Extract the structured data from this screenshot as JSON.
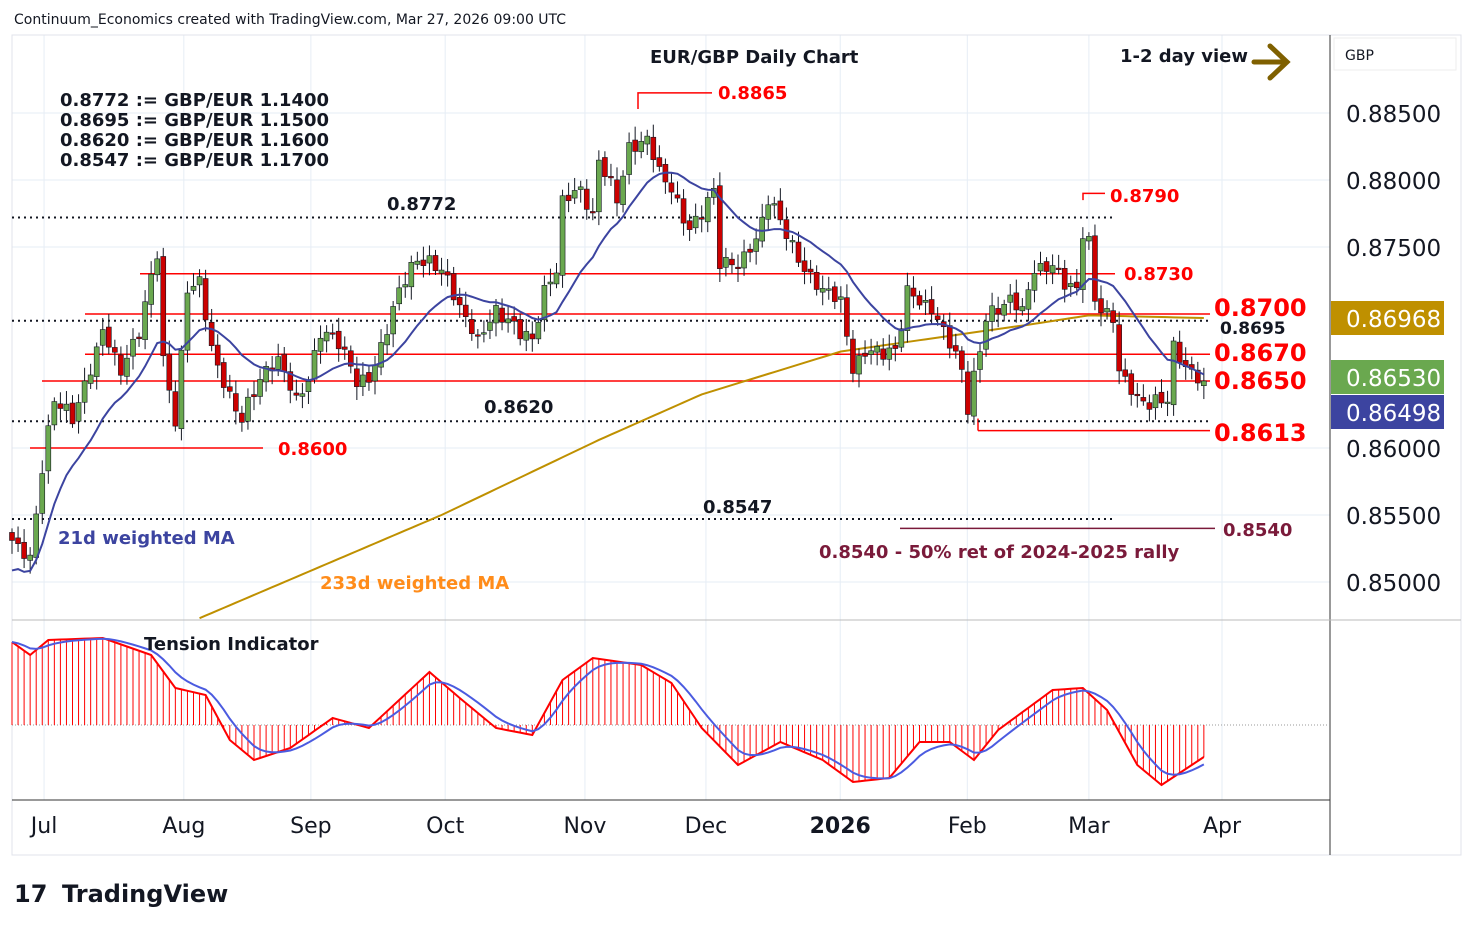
{
  "header": {
    "attribution": "Continuum_Economics created with TradingView.com, Mar 27, 2026 09:00 UTC"
  },
  "chart_data": {
    "type": "candlestick",
    "title": "EUR/GBP Daily Chart",
    "view": "1-2 day view",
    "currency": "GBP",
    "conversions": [
      "0.8772 := GBP/EUR 1.1400",
      "0.8695 := GBP/EUR 1.1500",
      "0.8620 := GBP/EUR 1.1600",
      "0.8547 := GBP/EUR 1.1700"
    ],
    "y_ticks": [
      "0.88500",
      "0.88000",
      "0.87500",
      "0.86000",
      "0.85500",
      "0.85000"
    ],
    "y_tick_values": [
      0.885,
      0.88,
      0.875,
      0.86,
      0.855,
      0.85
    ],
    "ylim": [
      0.8475,
      0.8875
    ],
    "x_ticks": [
      {
        "label": "Jul",
        "day": 5.3
      },
      {
        "label": "Aug",
        "day": 28.4
      },
      {
        "label": "Sep",
        "day": 49.4
      },
      {
        "label": "Oct",
        "day": 71.6
      },
      {
        "label": "Nov",
        "day": 94.7
      },
      {
        "label": "Dec",
        "day": 114.7
      },
      {
        "label": "2026",
        "day": 136.9
      },
      {
        "label": "Feb",
        "day": 157.9
      },
      {
        "label": "Mar",
        "day": 178
      },
      {
        "label": "Apr",
        "day": 200
      }
    ],
    "closes": [
      [
        0,
        0.8531
      ],
      [
        3,
        0.8516
      ],
      [
        5,
        0.8584
      ],
      [
        7,
        0.8636
      ],
      [
        10,
        0.8621
      ],
      [
        13,
        0.8658
      ],
      [
        15,
        0.8688
      ],
      [
        18,
        0.8658
      ],
      [
        21,
        0.8688
      ],
      [
        24,
        0.8748
      ],
      [
        25,
        0.8666
      ],
      [
        27,
        0.8621
      ],
      [
        29,
        0.8718
      ],
      [
        31,
        0.8725
      ],
      [
        33,
        0.8673
      ],
      [
        36,
        0.8636
      ],
      [
        38,
        0.8621
      ],
      [
        41,
        0.8651
      ],
      [
        44,
        0.8666
      ],
      [
        47,
        0.8636
      ],
      [
        49,
        0.8651
      ],
      [
        51,
        0.8688
      ],
      [
        54,
        0.8681
      ],
      [
        57,
        0.8651
      ],
      [
        59,
        0.8651
      ],
      [
        62,
        0.8688
      ],
      [
        64,
        0.8718
      ],
      [
        67,
        0.874
      ],
      [
        71,
        0.8733
      ],
      [
        73,
        0.8714
      ],
      [
        75,
        0.8696
      ],
      [
        77,
        0.8681
      ],
      [
        80,
        0.8703
      ],
      [
        82,
        0.8696
      ],
      [
        86,
        0.8681
      ],
      [
        88,
        0.8718
      ],
      [
        90,
        0.8733
      ],
      [
        91,
        0.8785
      ],
      [
        94,
        0.8793
      ],
      [
        96,
        0.877
      ],
      [
        97,
        0.8815
      ],
      [
        100,
        0.8785
      ],
      [
        102,
        0.8822
      ],
      [
        105,
        0.883
      ],
      [
        107,
        0.8807
      ],
      [
        109,
        0.8793
      ],
      [
        112,
        0.8763
      ],
      [
        115,
        0.8785
      ],
      [
        116,
        0.8793
      ],
      [
        117,
        0.874
      ],
      [
        120,
        0.8737
      ],
      [
        123,
        0.8755
      ],
      [
        125,
        0.8785
      ],
      [
        127,
        0.877
      ],
      [
        129,
        0.8748
      ],
      [
        132,
        0.8725
      ],
      [
        134,
        0.8718
      ],
      [
        137,
        0.871
      ],
      [
        139,
        0.8658
      ],
      [
        141,
        0.8673
      ],
      [
        144,
        0.8673
      ],
      [
        146,
        0.8673
      ],
      [
        148,
        0.8718
      ],
      [
        152,
        0.8703
      ],
      [
        154,
        0.8688
      ],
      [
        157,
        0.8658
      ],
      [
        158,
        0.8628
      ],
      [
        161,
        0.8696
      ],
      [
        163,
        0.8703
      ],
      [
        165,
        0.871
      ],
      [
        167,
        0.8703
      ],
      [
        169,
        0.8733
      ],
      [
        172,
        0.8737
      ],
      [
        174,
        0.8725
      ],
      [
        176,
        0.8718
      ],
      [
        177,
        0.8763
      ],
      [
        178,
        0.8755
      ],
      [
        179,
        0.871
      ],
      [
        182,
        0.8696
      ],
      [
        183,
        0.8658
      ],
      [
        186,
        0.8636
      ],
      [
        188,
        0.8632
      ],
      [
        191,
        0.8636
      ],
      [
        192,
        0.8673
      ],
      [
        195,
        0.8654
      ],
      [
        197,
        0.865
      ]
    ],
    "ma_233": [
      [
        31,
        0.8473
      ],
      [
        71,
        0.855
      ],
      [
        97,
        0.8606
      ],
      [
        114,
        0.864
      ],
      [
        137,
        0.8672
      ],
      [
        157,
        0.8685
      ],
      [
        168,
        0.8692
      ],
      [
        178,
        0.8699
      ],
      [
        197,
        0.8697
      ]
    ],
    "tension": [
      [
        0,
        83
      ],
      [
        3,
        70
      ],
      [
        6,
        85
      ],
      [
        15,
        87
      ],
      [
        23,
        70
      ],
      [
        27,
        37
      ],
      [
        32,
        30
      ],
      [
        36,
        -15
      ],
      [
        40,
        -35
      ],
      [
        46,
        -23
      ],
      [
        53,
        7
      ],
      [
        59,
        -3
      ],
      [
        64,
        25
      ],
      [
        69,
        53
      ],
      [
        74,
        27
      ],
      [
        80,
        -3
      ],
      [
        86,
        -10
      ],
      [
        91,
        45
      ],
      [
        96,
        67
      ],
      [
        104,
        60
      ],
      [
        109,
        42
      ],
      [
        114,
        -3
      ],
      [
        120,
        -40
      ],
      [
        127,
        -17
      ],
      [
        134,
        -35
      ],
      [
        139,
        -57
      ],
      [
        145,
        -53
      ],
      [
        150,
        -17
      ],
      [
        155,
        -17
      ],
      [
        159,
        -35
      ],
      [
        163,
        -5
      ],
      [
        172,
        35
      ],
      [
        177,
        37
      ],
      [
        181,
        15
      ],
      [
        186,
        -40
      ],
      [
        190,
        -60
      ],
      [
        197,
        -32
      ]
    ],
    "levels": {
      "solid_red": [
        {
          "label": "0.8730",
          "value": 0.873
        },
        {
          "label": "0.8700",
          "value": 0.87
        },
        {
          "label": "0.8670",
          "value": 0.867
        },
        {
          "label": "0.8650",
          "value": 0.865
        },
        {
          "label": "0.8613",
          "value": 0.8613
        },
        {
          "label": "0.8600",
          "value": 0.86
        }
      ],
      "dotted": [
        {
          "label": "0.8772",
          "value": 0.8772
        },
        {
          "label": "0.8695",
          "value": 0.8695
        },
        {
          "label": "0.8620",
          "value": 0.862
        },
        {
          "label": "0.8547",
          "value": 0.8547
        }
      ],
      "highs": [
        {
          "label": "0.8865",
          "value": 0.8865
        },
        {
          "label": "0.8790",
          "value": 0.879
        }
      ],
      "retracement": {
        "label": "0.8540",
        "value": 0.854,
        "note": "0.8540 - 50% ret of 2024-2025 rally"
      }
    },
    "badges": [
      {
        "label": "0.86968",
        "color": "#bf9000"
      },
      {
        "label": "0.86530",
        "color": "#6aa84f"
      },
      {
        "label": "0.86498",
        "color": "#3c44a0"
      }
    ],
    "legend": {
      "ma21": "21d weighted MA",
      "ma233": "233d weighted MA",
      "indicator": "Tension Indicator"
    },
    "colors": {
      "up": "#6aa84f",
      "down": "#cc0000",
      "ma21": "#3c44a0",
      "ma233": "#bf9000",
      "level": "#ff0000",
      "ret": "#7a1a3a"
    }
  },
  "footer": {
    "brand": "TradingView"
  }
}
